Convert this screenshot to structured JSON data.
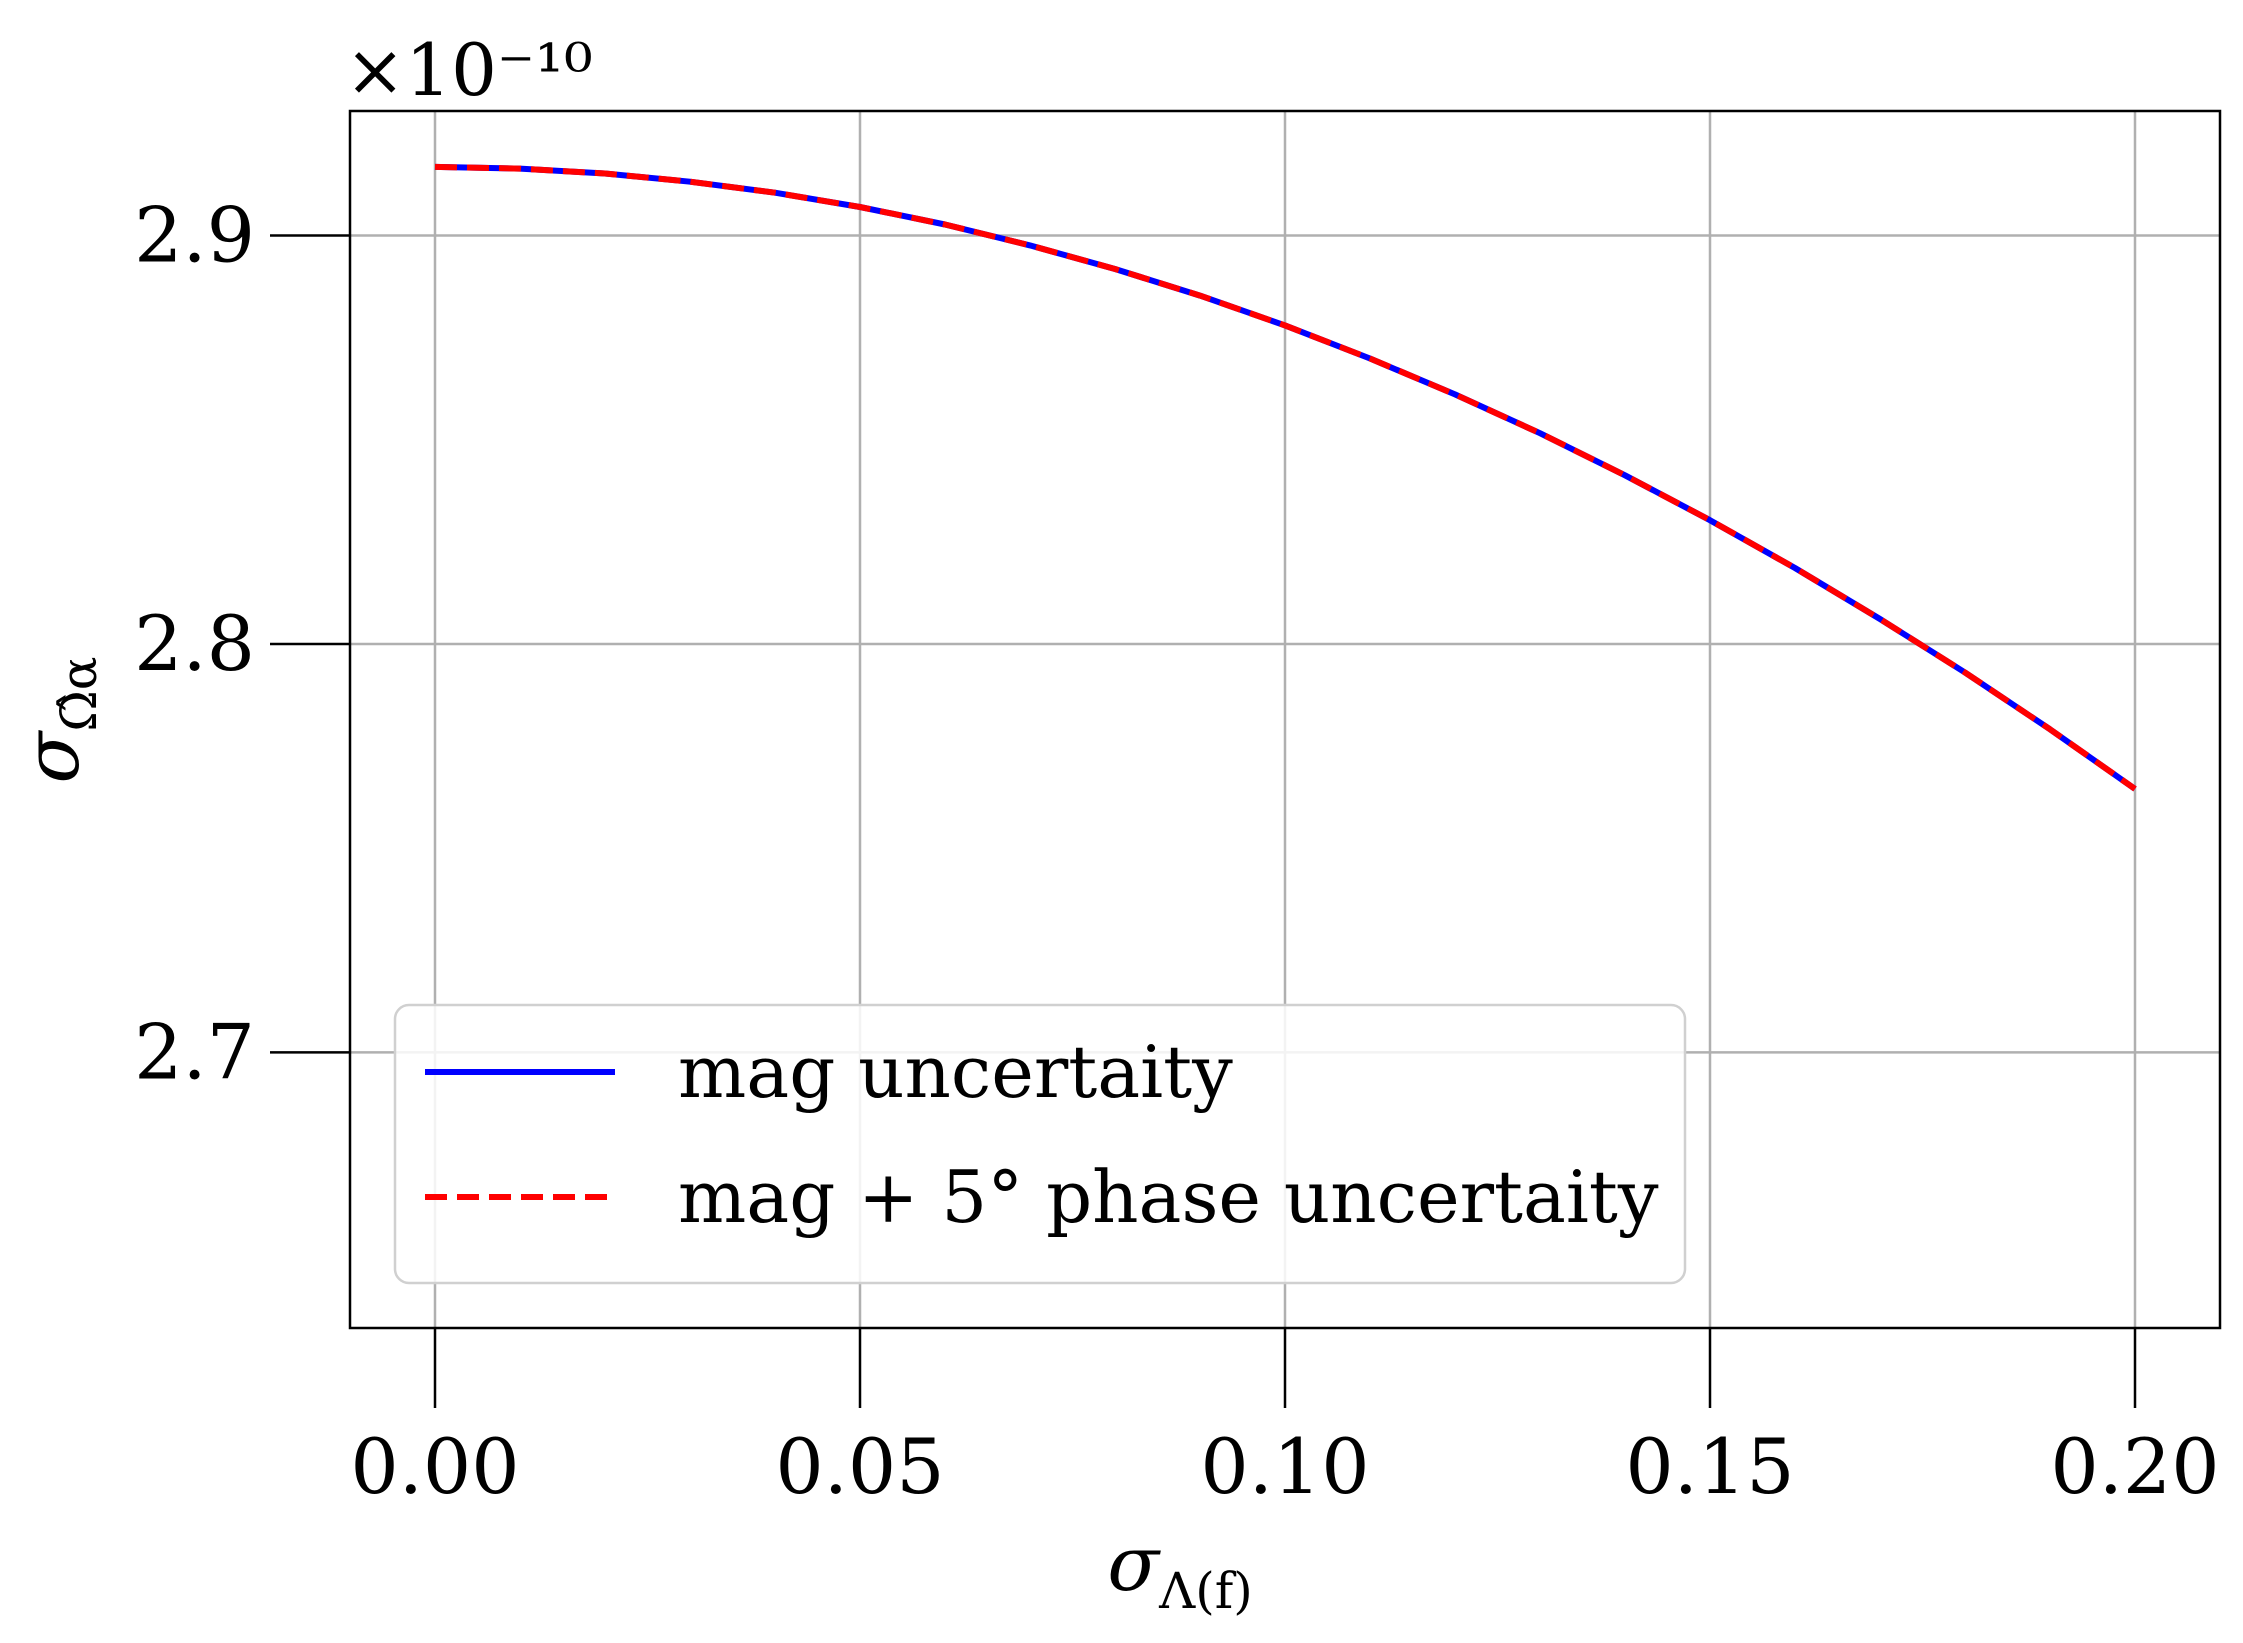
{
  "chart_data": {
    "type": "line",
    "title": "",
    "xlabel": "σ",
    "xlabel_sub": "Λ(f)",
    "ylabel": "σ",
    "ylabel_sub": "Ω̂α",
    "y_multiplier": "×10⁻¹⁰",
    "xlim": [
      -0.01,
      0.21
    ],
    "ylim": [
      2.6325,
      2.9305
    ],
    "x_ticks": [
      0.0,
      0.05,
      0.1,
      0.15,
      0.2
    ],
    "x_tick_labels": [
      "0.00",
      "0.05",
      "0.10",
      "0.15",
      "0.20"
    ],
    "y_ticks": [
      2.7,
      2.8,
      2.9
    ],
    "y_tick_labels": [
      "2.7",
      "2.8",
      "2.9"
    ],
    "grid": true,
    "legend_position": "lower-left",
    "x": [
      0.0,
      0.01,
      0.02,
      0.03,
      0.04,
      0.05,
      0.06,
      0.07,
      0.08,
      0.09,
      0.1,
      0.11,
      0.12,
      0.13,
      0.14,
      0.15,
      0.16,
      0.17,
      0.18,
      0.19,
      0.2
    ],
    "series": [
      {
        "name": "mag uncertaity",
        "color": "#0000ff",
        "style": "solid",
        "values": [
          2.9168,
          2.9164,
          2.9152,
          2.9132,
          2.9105,
          2.907,
          2.9027,
          2.8976,
          2.8918,
          2.8853,
          2.878,
          2.8699,
          2.8611,
          2.8516,
          2.8413,
          2.8303,
          2.8186,
          2.8061,
          2.793,
          2.7791,
          2.7645
        ]
      },
      {
        "name": "mag + 5° phase uncertaity",
        "color": "#ff0000",
        "style": "dashed",
        "values": [
          2.9168,
          2.9164,
          2.9152,
          2.9132,
          2.9105,
          2.907,
          2.9027,
          2.8976,
          2.8918,
          2.8853,
          2.878,
          2.8699,
          2.8611,
          2.8516,
          2.8413,
          2.8303,
          2.8186,
          2.8061,
          2.793,
          2.7791,
          2.7645
        ]
      }
    ]
  }
}
